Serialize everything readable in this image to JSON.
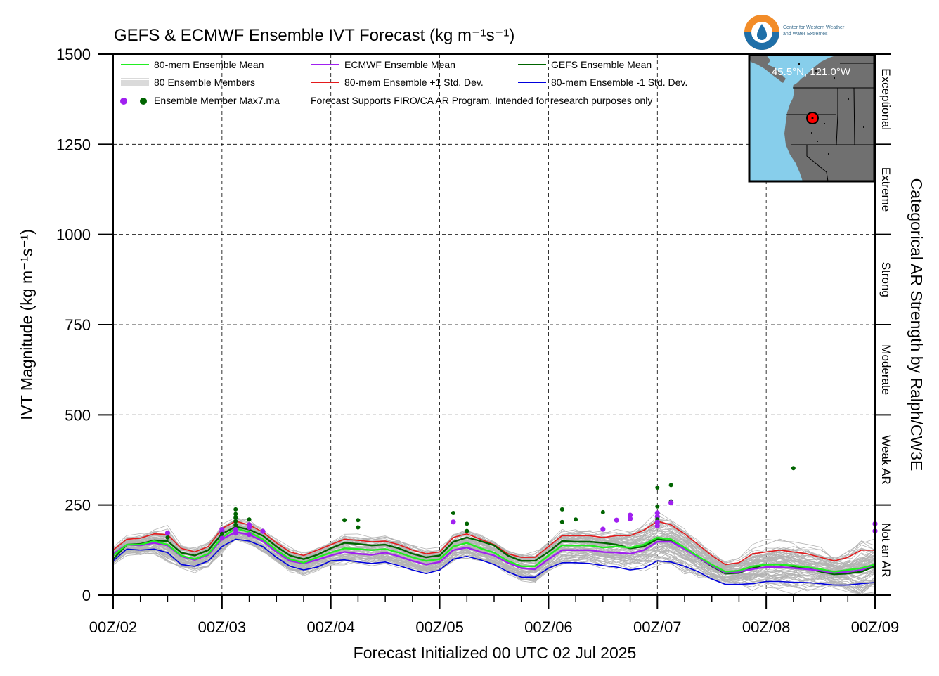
{
  "title": "GEFS & ECMWF Ensemble IVT Forecast (kg m⁻¹s⁻¹)",
  "xlabel": "Forecast Initialized 00 UTC 02 Jul 2025",
  "ylabel": "IVT Magnitude (kg m⁻¹s⁻¹)",
  "right_axis_label": "Categorical AR Strength by Ralph/CW3E",
  "logo": {
    "line1": "Center for Western Weather",
    "line2": "and Water Extremes"
  },
  "inset": {
    "location_label": "45.5°N, 121.0°W"
  },
  "legend": {
    "mean80": "80-mem Ensemble Mean",
    "ecmwf_mean": "ECMWF Ensemble Mean",
    "gefs_mean": "GEFS Ensemble Mean",
    "members": "80 Ensemble Members",
    "plus_sd": "80-mem Ensemble +1 Std. Dev.",
    "minus_sd": "80-mem Ensemble -1 Std. Dev.",
    "max_label": "Ensemble Member Max7.ma",
    "note": "Forecast Supports FIRO/CA AR Program. Intended for research purposes only"
  },
  "colors": {
    "mean80": "#22ee22",
    "ecmwf": "#a020f0",
    "gefs": "#006400",
    "plus_sd": "#e41a1c",
    "minus_sd": "#0000dd",
    "members": "#b4b4b4",
    "map_water": "#87ceeb",
    "map_land": "#707070"
  },
  "chart_data": {
    "type": "line",
    "title": "GEFS & ECMWF Ensemble IVT Forecast (kg m⁻¹s⁻¹)",
    "xlabel": "Forecast Initialized 00 UTC 02 Jul 2025",
    "ylabel": "IVT Magnitude (kg m⁻¹s⁻¹)",
    "x_unit": "hours since 00Z/02",
    "xlim": [
      0,
      168
    ],
    "ylim": [
      0,
      1500
    ],
    "grid": true,
    "legend_position": "top-left",
    "x_ticks": [
      {
        "value": 0,
        "label": "00Z/02"
      },
      {
        "value": 24,
        "label": "00Z/03"
      },
      {
        "value": 48,
        "label": "00Z/04"
      },
      {
        "value": 72,
        "label": "00Z/05"
      },
      {
        "value": 96,
        "label": "00Z/06"
      },
      {
        "value": 120,
        "label": "00Z/07"
      },
      {
        "value": 144,
        "label": "00Z/08"
      },
      {
        "value": 168,
        "label": "00Z/09"
      }
    ],
    "y_ticks": [
      0,
      250,
      500,
      750,
      1000,
      1250,
      1500
    ],
    "categories": [
      {
        "name": "Not an AR",
        "range": [
          0,
          250
        ]
      },
      {
        "name": "Weak AR",
        "range": [
          250,
          500
        ]
      },
      {
        "name": "Moderate",
        "range": [
          500,
          750
        ]
      },
      {
        "name": "Strong",
        "range": [
          750,
          1000
        ]
      },
      {
        "name": "Extreme",
        "range": [
          1000,
          1250
        ]
      },
      {
        "name": "Exceptional",
        "range": [
          1250,
          1500
        ]
      }
    ],
    "x": [
      0,
      3,
      6,
      9,
      12,
      15,
      18,
      21,
      24,
      27,
      30,
      33,
      36,
      39,
      42,
      45,
      48,
      51,
      54,
      57,
      60,
      63,
      66,
      69,
      72,
      75,
      78,
      81,
      84,
      87,
      90,
      93,
      96,
      99,
      102,
      105,
      108,
      111,
      114,
      117,
      120,
      123,
      126,
      129,
      132,
      135,
      138,
      141,
      144,
      147,
      150,
      153,
      156,
      159,
      162,
      165,
      168
    ],
    "series": [
      {
        "name": "80-mem Ensemble +1 Std. Dev.",
        "color": "#e41a1c",
        "values": [
          125,
          155,
          158,
          170,
          168,
          130,
          120,
          135,
          185,
          205,
          195,
          175,
          145,
          120,
          110,
          125,
          140,
          155,
          152,
          148,
          150,
          140,
          125,
          115,
          120,
          160,
          170,
          155,
          140,
          115,
          105,
          105,
          135,
          165,
          165,
          165,
          160,
          165,
          165,
          180,
          205,
          195,
          170,
          140,
          110,
          85,
          90,
          115,
          120,
          125,
          120,
          115,
          105,
          95,
          105,
          125,
          125
        ]
      },
      {
        "name": "80-mem Ensemble Mean",
        "color": "#22ee22",
        "values": [
          110,
          140,
          140,
          150,
          140,
          110,
          100,
          115,
          160,
          185,
          175,
          155,
          125,
          100,
          90,
          105,
          118,
          130,
          128,
          125,
          128,
          118,
          105,
          95,
          100,
          135,
          145,
          130,
          118,
          95,
          80,
          80,
          110,
          138,
          138,
          138,
          132,
          135,
          132,
          140,
          160,
          155,
          132,
          108,
          85,
          65,
          68,
          80,
          85,
          85,
          82,
          78,
          72,
          65,
          70,
          75,
          85
        ]
      },
      {
        "name": "GEFS Ensemble Mean",
        "color": "#006400",
        "values": [
          100,
          140,
          142,
          152,
          150,
          118,
          110,
          125,
          170,
          190,
          182,
          165,
          135,
          110,
          100,
          112,
          130,
          145,
          142,
          138,
          140,
          130,
          115,
          105,
          110,
          148,
          160,
          150,
          138,
          110,
          95,
          95,
          120,
          150,
          148,
          148,
          145,
          140,
          130,
          135,
          155,
          150,
          130,
          105,
          80,
          60,
          62,
          75,
          85,
          85,
          80,
          75,
          65,
          58,
          60,
          65,
          80
        ]
      },
      {
        "name": "ECMWF Ensemble Mean",
        "color": "#a020f0",
        "values": [
          115,
          140,
          138,
          145,
          138,
          108,
          98,
          112,
          155,
          175,
          168,
          150,
          120,
          95,
          88,
          98,
          110,
          120,
          115,
          112,
          118,
          108,
          95,
          85,
          92,
          125,
          132,
          120,
          110,
          90,
          75,
          72,
          100,
          125,
          125,
          125,
          120,
          118,
          115,
          125,
          148,
          148,
          128,
          105,
          82,
          62,
          65,
          72,
          78,
          78,
          75,
          72,
          68,
          62,
          65,
          70,
          85
        ]
      },
      {
        "name": "80-mem Ensemble -1 Std. Dev.",
        "color": "#0000dd",
        "values": [
          95,
          128,
          125,
          128,
          118,
          85,
          80,
          95,
          135,
          155,
          150,
          135,
          105,
          80,
          70,
          78,
          95,
          98,
          92,
          88,
          92,
          82,
          70,
          60,
          70,
          100,
          108,
          98,
          85,
          65,
          50,
          50,
          75,
          90,
          90,
          88,
          82,
          78,
          70,
          75,
          95,
          92,
          80,
          65,
          45,
          30,
          30,
          32,
          38,
          38,
          36,
          35,
          32,
          28,
          28,
          32,
          35
        ]
      }
    ],
    "member_max_points": [
      {
        "model": "GEFS",
        "x": 12,
        "y": 160
      },
      {
        "model": "ECMWF",
        "x": 12,
        "y": 172
      },
      {
        "model": "ECMWF",
        "x": 24,
        "y": 158
      },
      {
        "model": "ECMWF",
        "x": 24,
        "y": 175
      },
      {
        "model": "ECMWF",
        "x": 24,
        "y": 182
      },
      {
        "model": "GEFS",
        "x": 24,
        "y": 170
      },
      {
        "model": "GEFS",
        "x": 27,
        "y": 238
      },
      {
        "model": "GEFS",
        "x": 27,
        "y": 225
      },
      {
        "model": "GEFS",
        "x": 27,
        "y": 215
      },
      {
        "model": "GEFS",
        "x": 27,
        "y": 205
      },
      {
        "model": "GEFS",
        "x": 27,
        "y": 195
      },
      {
        "model": "ECMWF",
        "x": 27,
        "y": 182
      },
      {
        "model": "ECMWF",
        "x": 27,
        "y": 172
      },
      {
        "model": "GEFS",
        "x": 30,
        "y": 210
      },
      {
        "model": "ECMWF",
        "x": 30,
        "y": 195
      },
      {
        "model": "ECMWF",
        "x": 30,
        "y": 188
      },
      {
        "model": "ECMWF",
        "x": 30,
        "y": 168
      },
      {
        "model": "ECMWF",
        "x": 33,
        "y": 177
      },
      {
        "model": "GEFS",
        "x": 51,
        "y": 208
      },
      {
        "model": "GEFS",
        "x": 54,
        "y": 208
      },
      {
        "model": "GEFS",
        "x": 54,
        "y": 188
      },
      {
        "model": "GEFS",
        "x": 75,
        "y": 228
      },
      {
        "model": "ECMWF",
        "x": 75,
        "y": 203
      },
      {
        "model": "GEFS",
        "x": 78,
        "y": 198
      },
      {
        "model": "GEFS",
        "x": 78,
        "y": 178
      },
      {
        "model": "GEFS",
        "x": 99,
        "y": 238
      },
      {
        "model": "GEFS",
        "x": 99,
        "y": 203
      },
      {
        "model": "GEFS",
        "x": 102,
        "y": 210
      },
      {
        "model": "GEFS",
        "x": 108,
        "y": 230
      },
      {
        "model": "ECMWF",
        "x": 108,
        "y": 183
      },
      {
        "model": "ECMWF",
        "x": 111,
        "y": 208
      },
      {
        "model": "ECMWF",
        "x": 114,
        "y": 222
      },
      {
        "model": "ECMWF",
        "x": 114,
        "y": 212
      },
      {
        "model": "GEFS",
        "x": 120,
        "y": 298
      },
      {
        "model": "GEFS",
        "x": 120,
        "y": 246
      },
      {
        "model": "ECMWF",
        "x": 120,
        "y": 228
      },
      {
        "model": "ECMWF",
        "x": 120,
        "y": 218
      },
      {
        "model": "GEFS",
        "x": 120,
        "y": 210
      },
      {
        "model": "ECMWF",
        "x": 120,
        "y": 202
      },
      {
        "model": "ECMWF",
        "x": 120,
        "y": 192
      },
      {
        "model": "GEFS",
        "x": 123,
        "y": 305
      },
      {
        "model": "GEFS",
        "x": 123,
        "y": 260
      },
      {
        "model": "ECMWF",
        "x": 123,
        "y": 256
      },
      {
        "model": "GEFS",
        "x": 150,
        "y": 352
      },
      {
        "model": "ECMWF",
        "x": 168,
        "y": 198
      },
      {
        "model": "ECMWF",
        "x": 168,
        "y": 178
      }
    ]
  }
}
